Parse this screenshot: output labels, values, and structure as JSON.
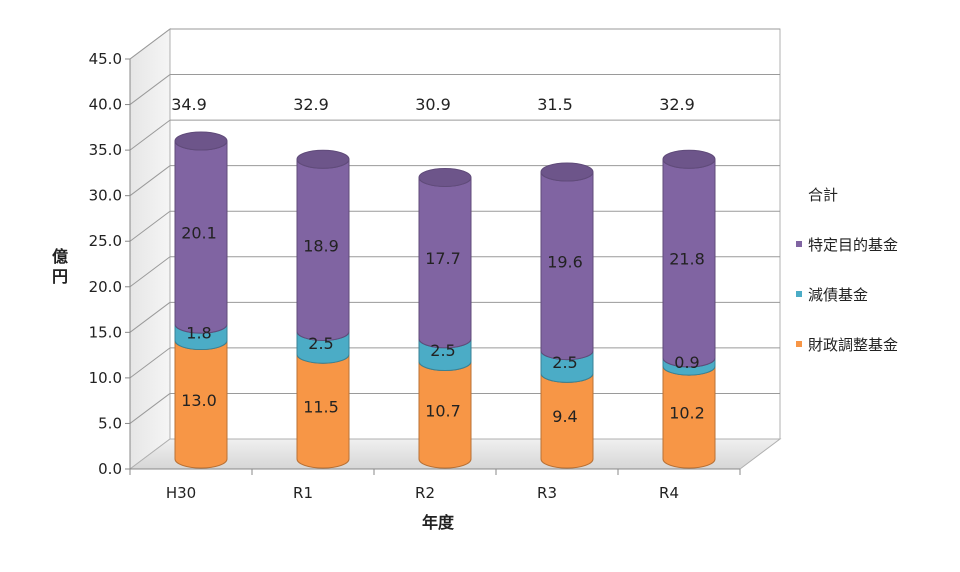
{
  "chart_data": {
    "type": "bar",
    "stacked": true,
    "style": "3d-cylinder",
    "title": "",
    "xlabel": "年度",
    "ylabel": "億円",
    "ylim": [
      0,
      45
    ],
    "yticks": [
      "0.0",
      "5.0",
      "10.0",
      "15.0",
      "20.0",
      "25.0",
      "30.0",
      "35.0",
      "40.0",
      "45.0"
    ],
    "categories": [
      "H30",
      "R1",
      "R2",
      "R3",
      "R4"
    ],
    "series": [
      {
        "name": "財政調整基金",
        "values": [
          13.0,
          11.5,
          10.7,
          9.4,
          10.2
        ],
        "labels": [
          "13.0",
          "11.5",
          "10.7",
          "9.4",
          "10.2"
        ],
        "color": "#f79646"
      },
      {
        "name": "減債基金",
        "values": [
          1.8,
          2.5,
          2.5,
          2.5,
          0.9
        ],
        "labels": [
          "1.8",
          "2.5",
          "2.5",
          "2.5",
          "0.9"
        ],
        "color": "#4bacc6"
      },
      {
        "name": "特定目的基金",
        "values": [
          20.1,
          18.9,
          17.7,
          19.6,
          21.8
        ],
        "labels": [
          "20.1",
          "18.9",
          "17.7",
          "19.6",
          "21.8"
        ],
        "color": "#8064a2"
      }
    ],
    "totals_name": "合計",
    "totals": [
      34.9,
      32.9,
      30.9,
      31.5,
      32.9
    ],
    "totals_labels": [
      "34.9",
      "32.9",
      "30.9",
      "31.5",
      "32.9"
    ],
    "legend": [
      "合計",
      "特定目的基金",
      "減債基金",
      "財政調整基金"
    ],
    "legend_position": "right",
    "grid": true
  }
}
